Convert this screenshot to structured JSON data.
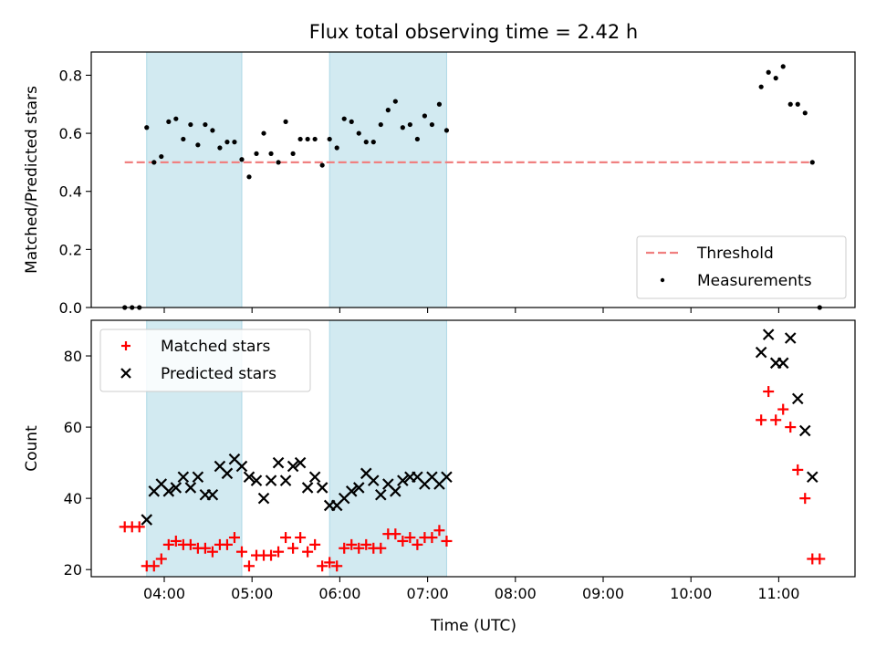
{
  "chart_data": {
    "type": "scatter",
    "title": "Flux total observing time = 2.42 h",
    "xlabel": "Time (UTC)",
    "x_ticks": [
      "04:00",
      "05:00",
      "06:00",
      "07:00",
      "08:00",
      "09:00",
      "10:00",
      "11:00"
    ],
    "shaded_intervals": [
      [
        "03:48",
        "04:53"
      ],
      [
        "05:53",
        "07:13"
      ]
    ],
    "shade_color": "#add8e6",
    "panels": [
      {
        "ylabel": "Matched/Predicted stars",
        "ylim": [
          0,
          0.88
        ],
        "y_ticks": [
          0.0,
          0.2,
          0.4,
          0.6,
          0.8
        ],
        "legend": {
          "position": "lower-right",
          "entries": [
            "Threshold",
            "Measurements"
          ]
        },
        "series": [
          {
            "name": "Threshold",
            "kind": "dashed-line",
            "color": "#f08080",
            "x": [
              "03:33",
              "11:23"
            ],
            "y": [
              0.5,
              0.5
            ]
          },
          {
            "name": "Measurements",
            "kind": "dot",
            "color": "#000000",
            "x": [
              "03:33",
              "03:38",
              "03:43",
              "03:48",
              "03:53",
              "03:58",
              "04:03",
              "04:08",
              "04:13",
              "04:18",
              "04:23",
              "04:28",
              "04:33",
              "04:38",
              "04:43",
              "04:48",
              "04:53",
              "04:58",
              "05:03",
              "05:08",
              "05:13",
              "05:18",
              "05:23",
              "05:28",
              "05:33",
              "05:38",
              "05:43",
              "05:48",
              "05:53",
              "05:58",
              "06:03",
              "06:08",
              "06:13",
              "06:18",
              "06:23",
              "06:28",
              "06:33",
              "06:38",
              "06:43",
              "06:48",
              "06:53",
              "06:58",
              "07:03",
              "07:08",
              "07:13",
              "10:48",
              "10:53",
              "10:58",
              "11:03",
              "11:08",
              "11:13",
              "11:18",
              "11:23",
              "11:28"
            ],
            "y": [
              0.0,
              0.0,
              0.0,
              0.62,
              0.5,
              0.52,
              0.64,
              0.65,
              0.58,
              0.63,
              0.56,
              0.63,
              0.61,
              0.55,
              0.57,
              0.57,
              0.51,
              0.45,
              0.53,
              0.6,
              0.53,
              0.5,
              0.64,
              0.53,
              0.58,
              0.58,
              0.58,
              0.49,
              0.58,
              0.55,
              0.65,
              0.64,
              0.6,
              0.57,
              0.57,
              0.63,
              0.68,
              0.71,
              0.62,
              0.63,
              0.58,
              0.66,
              0.63,
              0.7,
              0.61,
              0.76,
              0.81,
              0.79,
              0.83,
              0.7,
              0.7,
              0.67,
              0.5,
              0.0
            ]
          }
        ]
      },
      {
        "ylabel": "Count",
        "ylim": [
          18,
          90
        ],
        "y_ticks": [
          20,
          40,
          60,
          80
        ],
        "legend": {
          "position": "upper-left",
          "entries": [
            "Matched stars",
            "Predicted stars"
          ]
        },
        "series": [
          {
            "name": "Matched stars",
            "marker": "+",
            "color": "#ff0000",
            "x": [
              "03:33",
              "03:38",
              "03:43",
              "03:48",
              "03:53",
              "03:58",
              "04:03",
              "04:08",
              "04:13",
              "04:18",
              "04:23",
              "04:28",
              "04:33",
              "04:38",
              "04:43",
              "04:48",
              "04:53",
              "04:58",
              "05:03",
              "05:08",
              "05:13",
              "05:18",
              "05:23",
              "05:28",
              "05:33",
              "05:38",
              "05:43",
              "05:48",
              "05:53",
              "05:58",
              "06:03",
              "06:08",
              "06:13",
              "06:18",
              "06:23",
              "06:28",
              "06:33",
              "06:38",
              "06:43",
              "06:48",
              "06:53",
              "06:58",
              "07:03",
              "07:08",
              "07:13",
              "10:48",
              "10:53",
              "10:58",
              "11:03",
              "11:08",
              "11:13",
              "11:18",
              "11:23",
              "11:28"
            ],
            "y": [
              32,
              32,
              32,
              21,
              21,
              23,
              27,
              28,
              27,
              27,
              26,
              26,
              25,
              27,
              27,
              29,
              25,
              21,
              24,
              24,
              24,
              25,
              29,
              26,
              29,
              25,
              27,
              21,
              22,
              21,
              26,
              27,
              26,
              27,
              26,
              26,
              30,
              30,
              28,
              29,
              27,
              29,
              29,
              31,
              28,
              62,
              70,
              62,
              65,
              60,
              48,
              40,
              23,
              23
            ]
          },
          {
            "name": "Predicted stars",
            "marker": "x",
            "color": "#000000",
            "x": [
              "03:48",
              "03:53",
              "03:58",
              "04:03",
              "04:08",
              "04:13",
              "04:18",
              "04:23",
              "04:28",
              "04:33",
              "04:38",
              "04:43",
              "04:48",
              "04:53",
              "04:58",
              "05:03",
              "05:08",
              "05:13",
              "05:18",
              "05:23",
              "05:28",
              "05:33",
              "05:38",
              "05:43",
              "05:48",
              "05:53",
              "05:58",
              "06:03",
              "06:08",
              "06:13",
              "06:18",
              "06:23",
              "06:28",
              "06:33",
              "06:38",
              "06:43",
              "06:48",
              "06:53",
              "06:58",
              "07:03",
              "07:08",
              "07:13",
              "10:48",
              "10:53",
              "10:58",
              "11:03",
              "11:08",
              "11:13",
              "11:18",
              "11:23"
            ],
            "y": [
              34,
              42,
              44,
              42,
              43,
              46,
              43,
              46,
              41,
              41,
              49,
              47,
              51,
              49,
              46,
              45,
              40,
              45,
              50,
              45,
              49,
              50,
              43,
              46,
              43,
              38,
              38,
              40,
              42,
              43,
              47,
              45,
              41,
              44,
              42,
              45,
              46,
              46,
              44,
              46,
              44,
              46,
              81,
              86,
              78,
              78,
              85,
              68,
              59,
              46
            ]
          }
        ]
      }
    ]
  }
}
